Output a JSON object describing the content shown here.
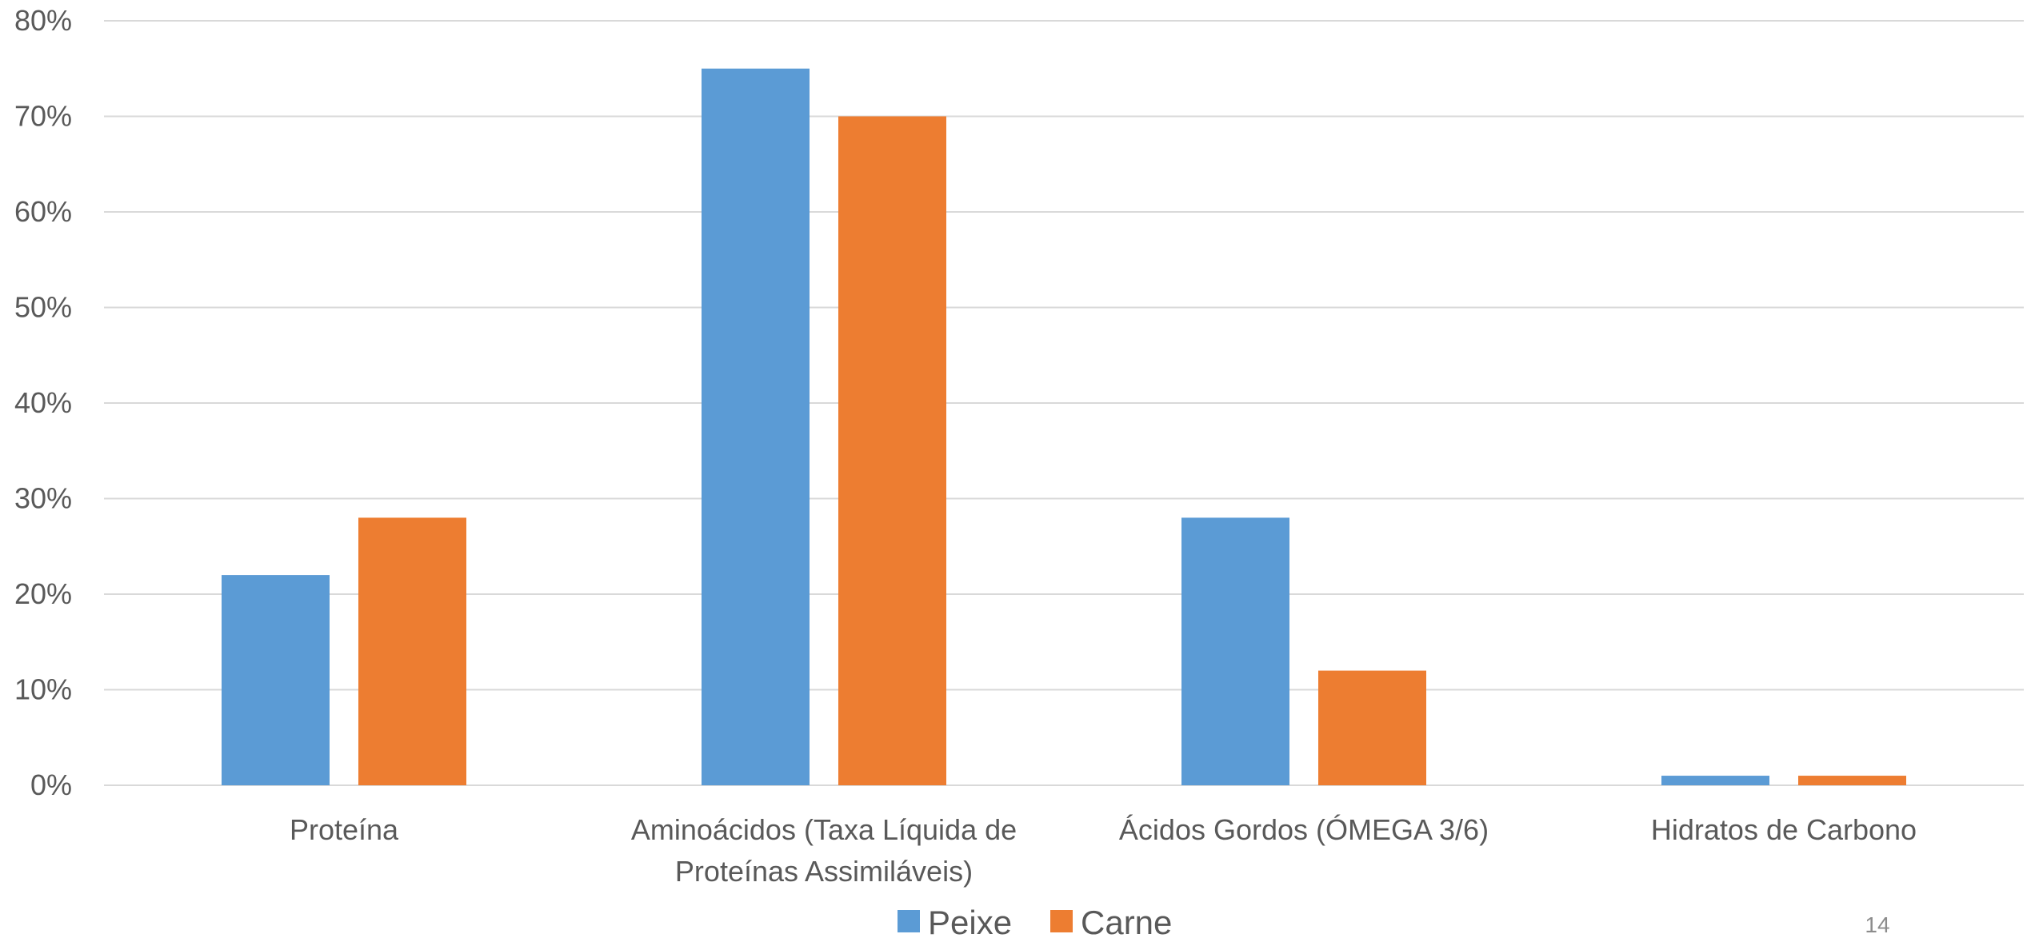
{
  "chart_data": {
    "type": "bar",
    "title": "",
    "xlabel": "",
    "ylabel": "",
    "categories": [
      [
        "Proteína"
      ],
      [
        "Aminoácidos (Taxa Líquida de",
        "Proteínas Assimiláveis)"
      ],
      [
        "Ácidos Gordos (ÓMEGA 3/6)"
      ],
      [
        "Hidratos de Carbono"
      ]
    ],
    "series": [
      {
        "name": "Peixe",
        "color": "#5B9BD5",
        "values": [
          22,
          75,
          28,
          1
        ]
      },
      {
        "name": "Carne",
        "color": "#ED7D31",
        "values": [
          28,
          70,
          12,
          1
        ]
      }
    ],
    "ylim": [
      0,
      80
    ],
    "yticks": [
      0,
      10,
      20,
      30,
      40,
      50,
      60,
      70,
      80
    ],
    "ytick_format": "percent",
    "grid": true,
    "legend_position": "bottom-center"
  },
  "page_number": "14"
}
